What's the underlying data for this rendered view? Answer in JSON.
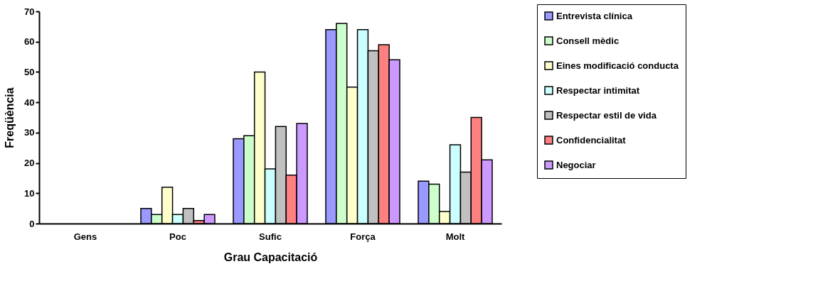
{
  "chart_data": {
    "type": "bar",
    "xlabel": "Grau Capacitació",
    "ylabel": "Freqüència",
    "categories": [
      "Gens",
      "Poc",
      "Sufic",
      "Força",
      "Molt"
    ],
    "series": [
      {
        "name": "Entrevista clínica",
        "color": "#9999ff",
        "values": [
          0,
          5,
          28,
          64,
          14
        ]
      },
      {
        "name": "Consell mèdic",
        "color": "#ccffcc",
        "values": [
          0,
          3,
          29,
          66,
          13
        ]
      },
      {
        "name": "Eines modificació conducta",
        "color": "#ffffcc",
        "values": [
          0,
          12,
          50,
          45,
          4
        ]
      },
      {
        "name": "Respectar intimitat",
        "color": "#ccffff",
        "values": [
          0,
          3,
          18,
          64,
          26
        ]
      },
      {
        "name": "Respectar estil de vida",
        "color": "#c0c0c0",
        "values": [
          0,
          5,
          32,
          57,
          17
        ]
      },
      {
        "name": "Confidencialitat",
        "color": "#ff8080",
        "values": [
          0,
          1,
          16,
          59,
          35
        ]
      },
      {
        "name": "Negociar",
        "color": "#cc99ff",
        "values": [
          0,
          3,
          33,
          54,
          21
        ]
      }
    ],
    "ylim": [
      0,
      70
    ],
    "yticks": [
      0,
      10,
      20,
      30,
      40,
      50,
      60,
      70
    ],
    "grid": false,
    "legend": "right"
  }
}
